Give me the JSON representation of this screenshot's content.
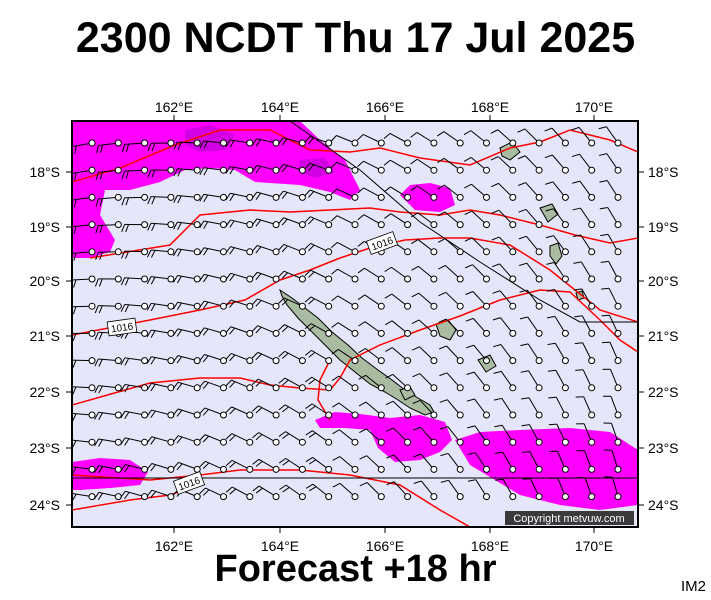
{
  "title": "2300 NCDT Thu 17 Jul 2025",
  "forecast": "Forecast +18 hr",
  "image_label": "IM2",
  "copyright": "Copyright metvuw.com",
  "axes": {
    "lon_labels": [
      "162°E",
      "164°E",
      "166°E",
      "168°E",
      "170°E"
    ],
    "lat_labels": [
      "18°S",
      "19°S",
      "20°S",
      "21°S",
      "22°S",
      "23°S",
      "24°S"
    ]
  },
  "isobar_labels": [
    "1016",
    "1016",
    "1016"
  ],
  "colors": {
    "sea": "#e6e6fa",
    "rain": "#ff00ff",
    "isobar": "#ff0000",
    "land": "#a9bca2",
    "frame": "#000000"
  }
}
